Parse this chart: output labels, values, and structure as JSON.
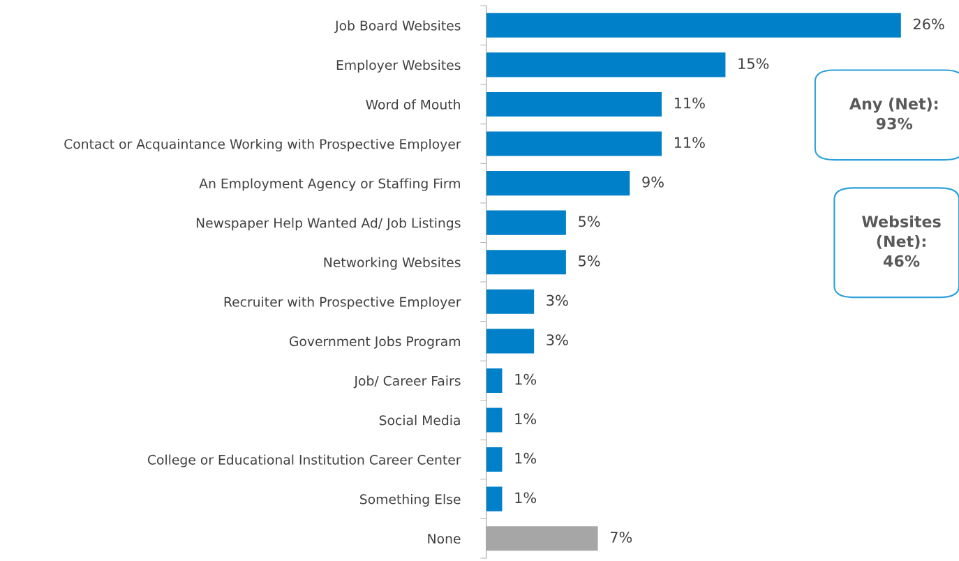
{
  "chart_data": {
    "type": "bar",
    "orientation": "horizontal",
    "categories": [
      "Job Board Websites",
      "Employer Websites",
      "Word of Mouth",
      "Contact or Acquaintance Working with Prospective Employer",
      "An Employment Agency or Staffing Firm",
      "Newspaper Help Wanted Ad/ Job Listings",
      "Networking Websites",
      "Recruiter with Prospective Employer",
      "Government Jobs Program",
      "Job/ Career Fairs",
      "Social Media",
      "College or Educational Institution Career Center",
      "Something Else",
      "None"
    ],
    "values": [
      26,
      15,
      11,
      11,
      9,
      5,
      5,
      3,
      3,
      1,
      1,
      1,
      1,
      7
    ],
    "value_labels": [
      "26%",
      "15%",
      "11%",
      "11%",
      "9%",
      "5%",
      "5%",
      "3%",
      "3%",
      "1%",
      "1%",
      "1%",
      "1%",
      "7%"
    ],
    "colors": [
      "#0080c8",
      "#0080c8",
      "#0080c8",
      "#0080c8",
      "#0080c8",
      "#0080c8",
      "#0080c8",
      "#0080c8",
      "#0080c8",
      "#0080c8",
      "#0080c8",
      "#0080c8",
      "#0080c8",
      "#a6a6a6"
    ],
    "annotations": [
      "Any (Net):\n93%",
      "Websites\n(Net):\n46%"
    ],
    "grid": false,
    "legend": false
  }
}
